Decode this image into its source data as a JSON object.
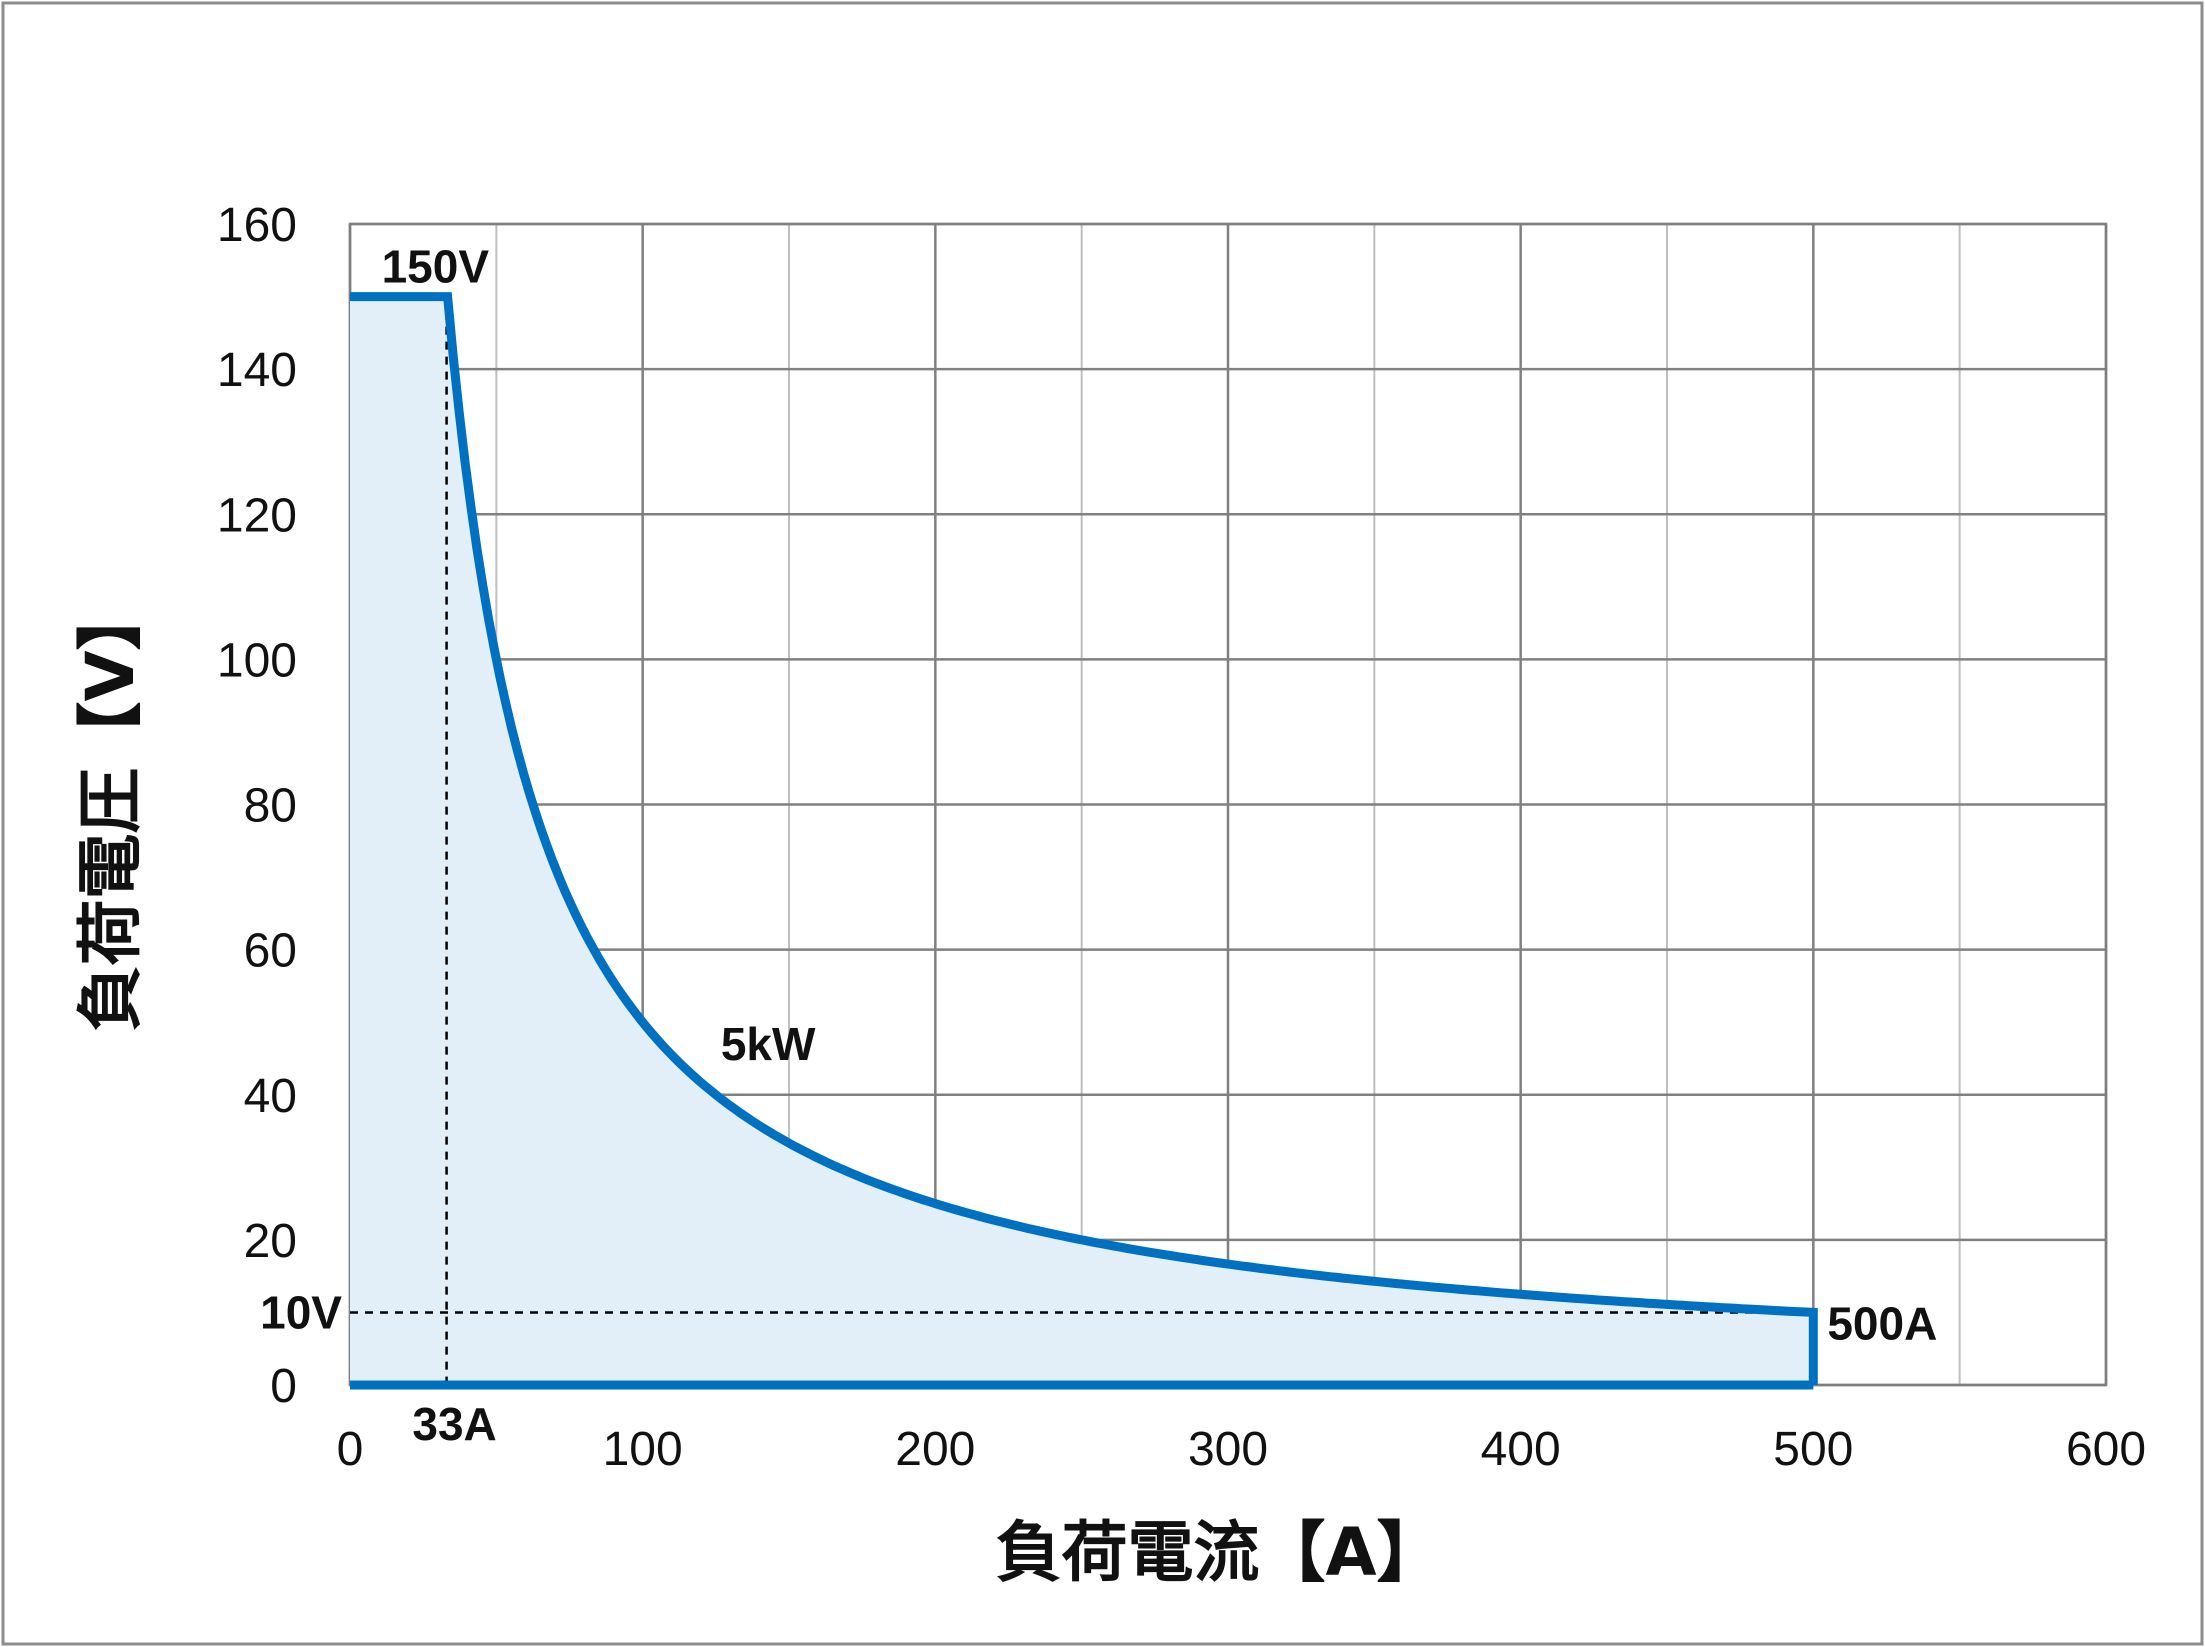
{
  "chart_data": {
    "type": "area",
    "title": "",
    "xlabel": "負荷電流【A】",
    "ylabel": "負荷電圧【V】",
    "xlim": [
      0,
      600
    ],
    "ylim": [
      0,
      160
    ],
    "x_ticks": [
      "0",
      "100",
      "200",
      "300",
      "400",
      "500",
      "600"
    ],
    "y_ticks": [
      "0",
      "20",
      "40",
      "60",
      "80",
      "100",
      "120",
      "140",
      "160"
    ],
    "x_minor_gridlines": [
      50,
      150,
      250,
      350,
      450,
      550
    ],
    "grid": true,
    "legend": "none",
    "series": [
      {
        "name": "5kW",
        "boundary": "150 V up to 33 A, then constant power 5 kW (V = 5000 / I) down to 10 V at 500 A, then vertical drop to 0 V",
        "max_voltage": 150,
        "max_current": 500,
        "power_w": 5000,
        "min_voltage": 10,
        "corner_current": 33,
        "points": [
          [
            0,
            150
          ],
          [
            33,
            150
          ],
          [
            40,
            125
          ],
          [
            50,
            100
          ],
          [
            60,
            83.3
          ],
          [
            70,
            71.4
          ],
          [
            80,
            62.5
          ],
          [
            100,
            50
          ],
          [
            125,
            40
          ],
          [
            150,
            33.3
          ],
          [
            200,
            25
          ],
          [
            250,
            20
          ],
          [
            300,
            16.7
          ],
          [
            350,
            14.3
          ],
          [
            400,
            12.5
          ],
          [
            450,
            11.1
          ],
          [
            500,
            10
          ],
          [
            500,
            0
          ]
        ]
      }
    ],
    "annotations": [
      {
        "text": "150V",
        "x": 33,
        "y": 150
      },
      {
        "text": "5kW",
        "x": 125,
        "y": 40
      },
      {
        "text": "10V",
        "x": 0,
        "y": 10
      },
      {
        "text": "500A",
        "x": 500,
        "y": 10
      },
      {
        "text": "33A",
        "x": 33,
        "y": 0
      }
    ],
    "reference_lines": [
      {
        "orientation": "vertical",
        "value": 33,
        "style": "dashed"
      },
      {
        "orientation": "horizontal",
        "value": 10,
        "style": "dashed"
      }
    ],
    "colors": {
      "line": "#0070C0",
      "fill": "#E2EEF8",
      "grid_major": "#808080",
      "grid_minor": "#BFBFBF",
      "frame": "#7F7F7F"
    }
  }
}
